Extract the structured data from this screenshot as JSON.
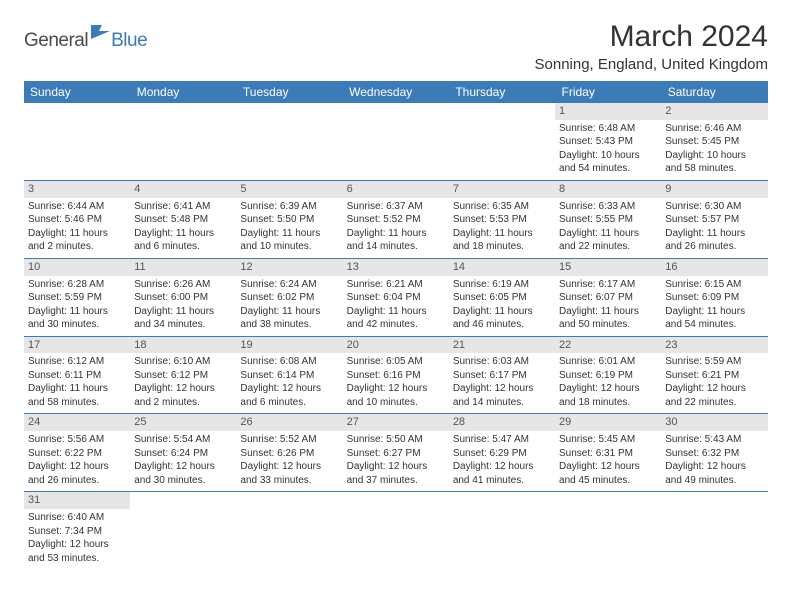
{
  "logo": {
    "general": "General",
    "blue": "Blue"
  },
  "title": "March 2024",
  "location": "Sonning, England, United Kingdom",
  "colors": {
    "header_bg": "#3b7bb8",
    "header_text": "#ffffff",
    "daynum_bg": "#e6e6e6",
    "border": "#3b7bb8",
    "body_text": "#333333"
  },
  "weekdays": [
    "Sunday",
    "Monday",
    "Tuesday",
    "Wednesday",
    "Thursday",
    "Friday",
    "Saturday"
  ],
  "weeks": [
    [
      null,
      null,
      null,
      null,
      null,
      {
        "n": "1",
        "sr": "Sunrise: 6:48 AM",
        "ss": "Sunset: 5:43 PM",
        "d1": "Daylight: 10 hours",
        "d2": "and 54 minutes."
      },
      {
        "n": "2",
        "sr": "Sunrise: 6:46 AM",
        "ss": "Sunset: 5:45 PM",
        "d1": "Daylight: 10 hours",
        "d2": "and 58 minutes."
      }
    ],
    [
      {
        "n": "3",
        "sr": "Sunrise: 6:44 AM",
        "ss": "Sunset: 5:46 PM",
        "d1": "Daylight: 11 hours",
        "d2": "and 2 minutes."
      },
      {
        "n": "4",
        "sr": "Sunrise: 6:41 AM",
        "ss": "Sunset: 5:48 PM",
        "d1": "Daylight: 11 hours",
        "d2": "and 6 minutes."
      },
      {
        "n": "5",
        "sr": "Sunrise: 6:39 AM",
        "ss": "Sunset: 5:50 PM",
        "d1": "Daylight: 11 hours",
        "d2": "and 10 minutes."
      },
      {
        "n": "6",
        "sr": "Sunrise: 6:37 AM",
        "ss": "Sunset: 5:52 PM",
        "d1": "Daylight: 11 hours",
        "d2": "and 14 minutes."
      },
      {
        "n": "7",
        "sr": "Sunrise: 6:35 AM",
        "ss": "Sunset: 5:53 PM",
        "d1": "Daylight: 11 hours",
        "d2": "and 18 minutes."
      },
      {
        "n": "8",
        "sr": "Sunrise: 6:33 AM",
        "ss": "Sunset: 5:55 PM",
        "d1": "Daylight: 11 hours",
        "d2": "and 22 minutes."
      },
      {
        "n": "9",
        "sr": "Sunrise: 6:30 AM",
        "ss": "Sunset: 5:57 PM",
        "d1": "Daylight: 11 hours",
        "d2": "and 26 minutes."
      }
    ],
    [
      {
        "n": "10",
        "sr": "Sunrise: 6:28 AM",
        "ss": "Sunset: 5:59 PM",
        "d1": "Daylight: 11 hours",
        "d2": "and 30 minutes."
      },
      {
        "n": "11",
        "sr": "Sunrise: 6:26 AM",
        "ss": "Sunset: 6:00 PM",
        "d1": "Daylight: 11 hours",
        "d2": "and 34 minutes."
      },
      {
        "n": "12",
        "sr": "Sunrise: 6:24 AM",
        "ss": "Sunset: 6:02 PM",
        "d1": "Daylight: 11 hours",
        "d2": "and 38 minutes."
      },
      {
        "n": "13",
        "sr": "Sunrise: 6:21 AM",
        "ss": "Sunset: 6:04 PM",
        "d1": "Daylight: 11 hours",
        "d2": "and 42 minutes."
      },
      {
        "n": "14",
        "sr": "Sunrise: 6:19 AM",
        "ss": "Sunset: 6:05 PM",
        "d1": "Daylight: 11 hours",
        "d2": "and 46 minutes."
      },
      {
        "n": "15",
        "sr": "Sunrise: 6:17 AM",
        "ss": "Sunset: 6:07 PM",
        "d1": "Daylight: 11 hours",
        "d2": "and 50 minutes."
      },
      {
        "n": "16",
        "sr": "Sunrise: 6:15 AM",
        "ss": "Sunset: 6:09 PM",
        "d1": "Daylight: 11 hours",
        "d2": "and 54 minutes."
      }
    ],
    [
      {
        "n": "17",
        "sr": "Sunrise: 6:12 AM",
        "ss": "Sunset: 6:11 PM",
        "d1": "Daylight: 11 hours",
        "d2": "and 58 minutes."
      },
      {
        "n": "18",
        "sr": "Sunrise: 6:10 AM",
        "ss": "Sunset: 6:12 PM",
        "d1": "Daylight: 12 hours",
        "d2": "and 2 minutes."
      },
      {
        "n": "19",
        "sr": "Sunrise: 6:08 AM",
        "ss": "Sunset: 6:14 PM",
        "d1": "Daylight: 12 hours",
        "d2": "and 6 minutes."
      },
      {
        "n": "20",
        "sr": "Sunrise: 6:05 AM",
        "ss": "Sunset: 6:16 PM",
        "d1": "Daylight: 12 hours",
        "d2": "and 10 minutes."
      },
      {
        "n": "21",
        "sr": "Sunrise: 6:03 AM",
        "ss": "Sunset: 6:17 PM",
        "d1": "Daylight: 12 hours",
        "d2": "and 14 minutes."
      },
      {
        "n": "22",
        "sr": "Sunrise: 6:01 AM",
        "ss": "Sunset: 6:19 PM",
        "d1": "Daylight: 12 hours",
        "d2": "and 18 minutes."
      },
      {
        "n": "23",
        "sr": "Sunrise: 5:59 AM",
        "ss": "Sunset: 6:21 PM",
        "d1": "Daylight: 12 hours",
        "d2": "and 22 minutes."
      }
    ],
    [
      {
        "n": "24",
        "sr": "Sunrise: 5:56 AM",
        "ss": "Sunset: 6:22 PM",
        "d1": "Daylight: 12 hours",
        "d2": "and 26 minutes."
      },
      {
        "n": "25",
        "sr": "Sunrise: 5:54 AM",
        "ss": "Sunset: 6:24 PM",
        "d1": "Daylight: 12 hours",
        "d2": "and 30 minutes."
      },
      {
        "n": "26",
        "sr": "Sunrise: 5:52 AM",
        "ss": "Sunset: 6:26 PM",
        "d1": "Daylight: 12 hours",
        "d2": "and 33 minutes."
      },
      {
        "n": "27",
        "sr": "Sunrise: 5:50 AM",
        "ss": "Sunset: 6:27 PM",
        "d1": "Daylight: 12 hours",
        "d2": "and 37 minutes."
      },
      {
        "n": "28",
        "sr": "Sunrise: 5:47 AM",
        "ss": "Sunset: 6:29 PM",
        "d1": "Daylight: 12 hours",
        "d2": "and 41 minutes."
      },
      {
        "n": "29",
        "sr": "Sunrise: 5:45 AM",
        "ss": "Sunset: 6:31 PM",
        "d1": "Daylight: 12 hours",
        "d2": "and 45 minutes."
      },
      {
        "n": "30",
        "sr": "Sunrise: 5:43 AM",
        "ss": "Sunset: 6:32 PM",
        "d1": "Daylight: 12 hours",
        "d2": "and 49 minutes."
      }
    ],
    [
      {
        "n": "31",
        "sr": "Sunrise: 6:40 AM",
        "ss": "Sunset: 7:34 PM",
        "d1": "Daylight: 12 hours",
        "d2": "and 53 minutes."
      },
      null,
      null,
      null,
      null,
      null,
      null
    ]
  ]
}
